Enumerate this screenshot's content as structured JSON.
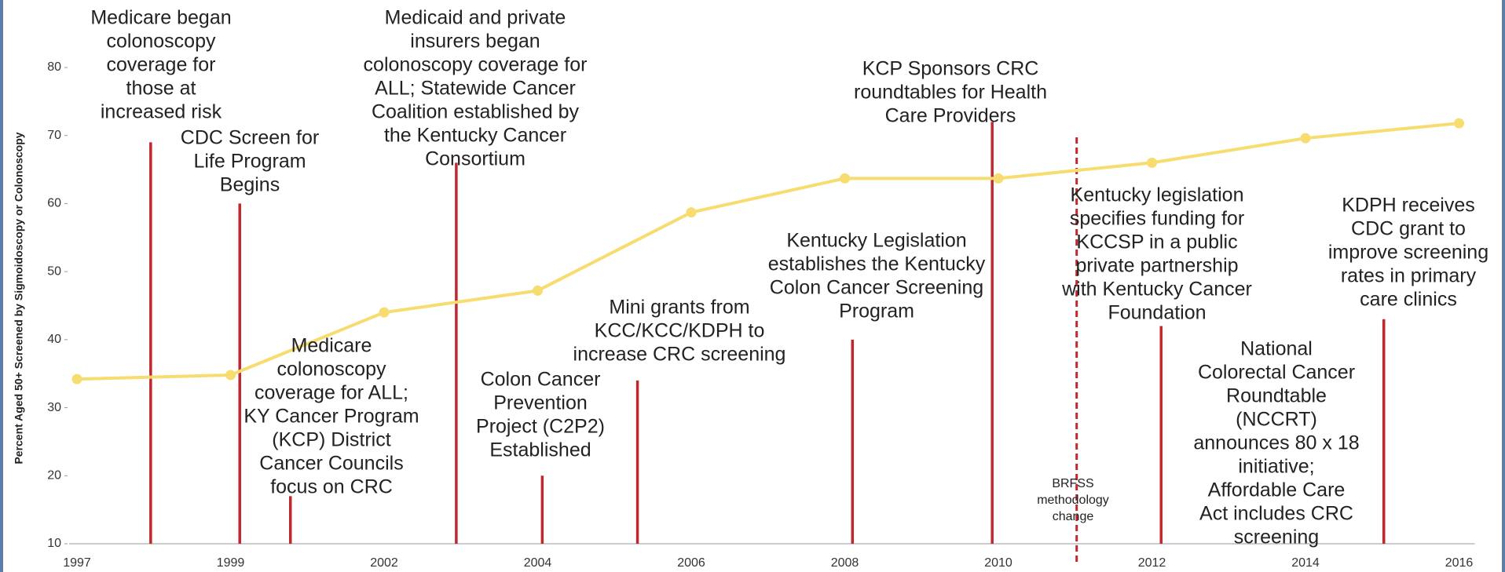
{
  "chart_data": {
    "type": "line",
    "y_label": "Percent Aged 50+ Screened by Sigmoidoscopy or Colonoscopy",
    "categories": [
      "1997",
      "1999",
      "2002",
      "2004",
      "2006",
      "2008",
      "2010",
      "2012",
      "2014",
      "2016"
    ],
    "values": [
      34.2,
      34.8,
      44,
      47.2,
      58.7,
      63.7,
      63.7,
      66,
      69.6,
      71.8
    ],
    "color": "#f7dc6f",
    "ylim": [
      10,
      80
    ],
    "yticks": [
      10,
      20,
      30,
      40,
      50,
      60,
      70,
      80
    ],
    "annotations": [
      {
        "lines": [
          "Medicare began",
          "colonoscopy",
          "coverage for",
          "those at",
          "increased risk"
        ],
        "x": 0.48,
        "value": 69
      },
      {
        "lines": [
          "CDC Screen for",
          "Life Program",
          "Begins"
        ],
        "x": 1.06,
        "value": 60
      },
      {
        "lines": [
          "Medicare",
          "colonoscopy",
          "coverage for ALL;",
          "KY Cancer Program",
          "(KCP) District",
          "Cancer Councils",
          "focus on CRC"
        ],
        "x": 1.39,
        "value": 17
      },
      {
        "lines": [
          "Medicaid and private",
          "insurers began",
          "colonoscopy coverage for",
          "ALL; Statewide Cancer",
          "Coalition established by",
          "the Kentucky Cancer",
          "Consortium"
        ],
        "x": 2.47,
        "value": 66
      },
      {
        "lines": [
          "Colon Cancer",
          "Prevention",
          "Project (C2P2)",
          "Established"
        ],
        "x": 3.03,
        "value": 20
      },
      {
        "lines": [
          "Mini grants from",
          "KCC/KCC/KDPH to",
          "increase CRC screening"
        ],
        "x": 3.65,
        "value": 34
      },
      {
        "lines": [
          "Kentucky Legislation",
          "establishes the Kentucky",
          "Colon Cancer Screening",
          "Program"
        ],
        "x": 5.05,
        "value": 40
      },
      {
        "lines": [
          "KCP Sponsors CRC",
          "roundtables for Health",
          "Care Providers"
        ],
        "x": 5.96,
        "value": 72
      },
      {
        "lines": [
          "Kentucky legislation",
          "specifies funding for",
          "KCCSP in a public",
          "private partnership",
          "with Kentucky Cancer",
          "Foundation"
        ],
        "x": 7.06,
        "value": 42
      },
      {
        "lines": [
          "National",
          "Colorectal Cancer",
          "Roundtable",
          "(NCCRT)",
          "announces 80 x 18",
          "initiative;",
          "Affordable Care",
          "Act includes CRC",
          "screening"
        ],
        "x": 8.51,
        "value": 43
      },
      {
        "lines": [
          "KDPH receives",
          "CDC grant to",
          "improve screening",
          "rates in primary",
          "care clinics"
        ],
        "x": 8.51,
        "value": 43
      }
    ],
    "method_change": {
      "lines": [
        "BRFSS",
        "methodology",
        "change"
      ],
      "x": 6.51,
      "value": 70
    }
  }
}
